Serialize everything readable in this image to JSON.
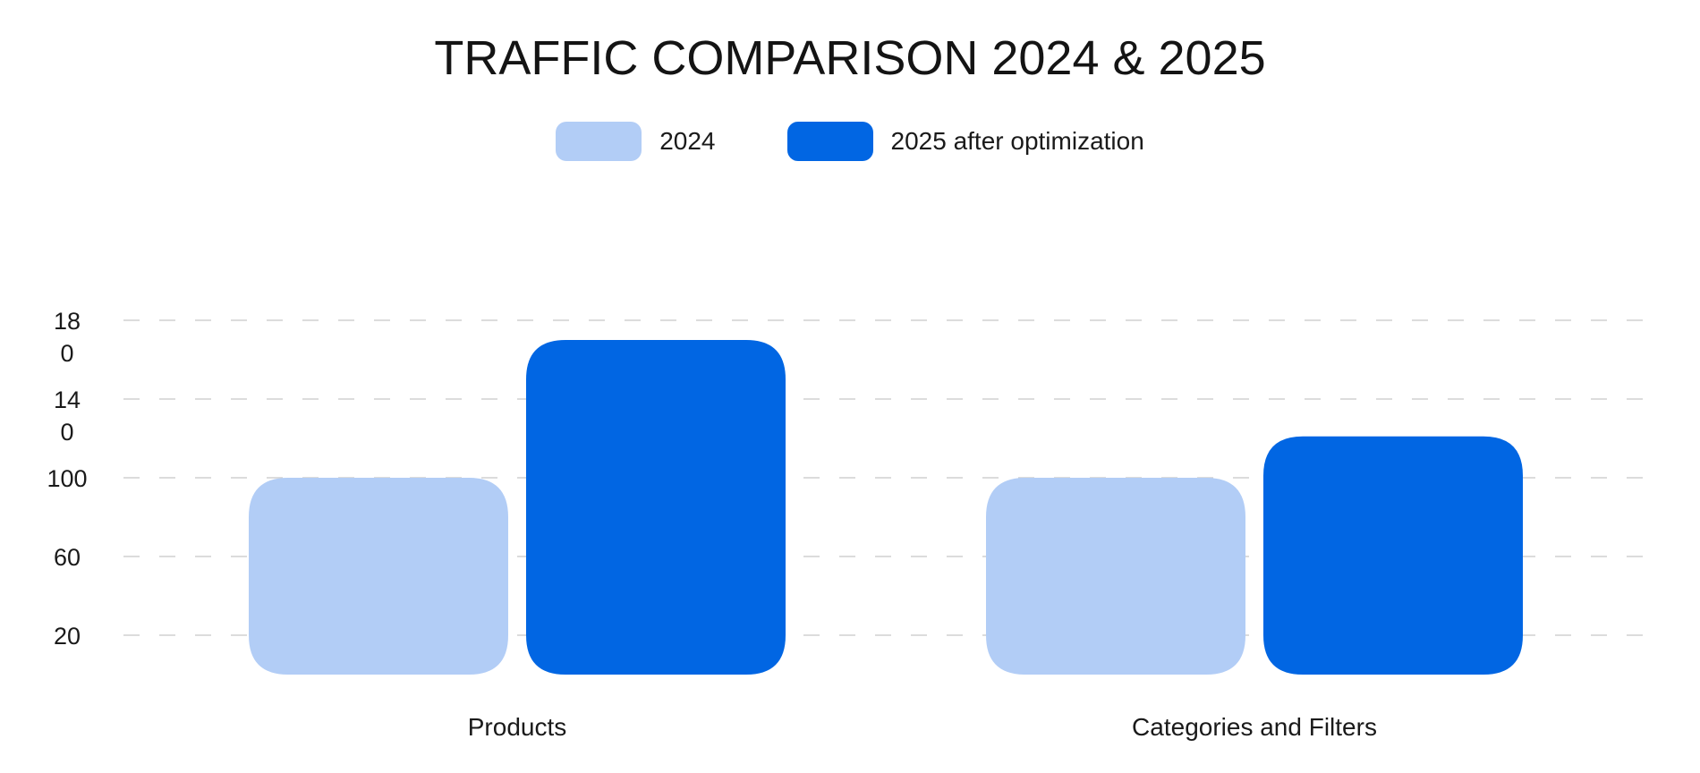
{
  "chart_data": {
    "type": "bar",
    "title": "TRAFFIC COMPARISON 2024 & 2025",
    "categories": [
      "Products",
      "Categories and Filters"
    ],
    "series": [
      {
        "name": "2024",
        "values": [
          100,
          100
        ],
        "color": "#b2cdf6"
      },
      {
        "name": "2025 after optimization",
        "values": [
          170,
          121
        ],
        "color": "#0166e3"
      }
    ],
    "xlabel": "",
    "ylabel": "",
    "yticks": [
      20,
      60,
      100,
      140,
      180
    ],
    "ytick_labels": [
      [
        "20"
      ],
      [
        "60"
      ],
      [
        "100"
      ],
      [
        "14",
        "0"
      ],
      [
        "18",
        "0"
      ]
    ],
    "ylim": [
      0,
      180
    ],
    "grid": true,
    "grid_style": "dashed",
    "legend_position": "top-center"
  }
}
